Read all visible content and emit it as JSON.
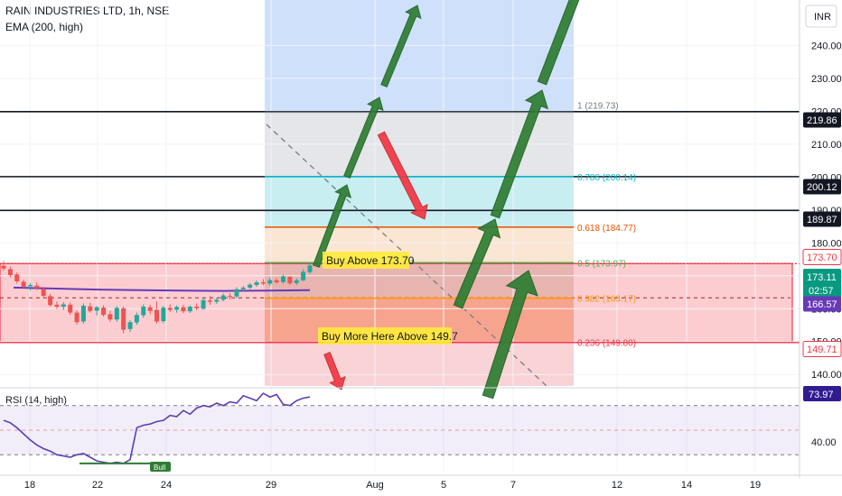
{
  "header": {
    "title": "RAIN INDUSTRIES LTD, 1h, NSE",
    "indicator": "EMA (200, high)",
    "currency": "INR"
  },
  "rsi_pane": {
    "label": "RSI (14, high)",
    "value": "73.97",
    "level_label": "40.00",
    "badge": "Bull"
  },
  "chart_data": {
    "type": "candlestick",
    "title": "RAIN INDUSTRIES LTD, 1h, NSE",
    "y_axis": {
      "range": [
        136.5,
        253.8
      ],
      "ticks": [
        140.0,
        150.0,
        160.0,
        170.0,
        180.0,
        190.0,
        200.0,
        210.0,
        220.0,
        230.0,
        240.0
      ]
    },
    "x_axis": {
      "tick_labels": [
        "18",
        "22",
        "24",
        "29",
        "Aug",
        "5",
        "7",
        "12",
        "14",
        "19"
      ]
    },
    "price_badges": [
      {
        "label": "219.86",
        "value": 219.86,
        "style": "dark"
      },
      {
        "label": "200.12",
        "value": 200.12,
        "style": "dark"
      },
      {
        "label": "189.87",
        "value": 189.87,
        "style": "dark"
      },
      {
        "label": "173.70",
        "value": 173.7,
        "style": "red-outline"
      },
      {
        "label": "173.11",
        "sub": "02:57",
        "value": 173.11,
        "style": "green"
      },
      {
        "label": "166.57",
        "value": 166.57,
        "style": "purple"
      },
      {
        "label": "149.71",
        "value": 149.71,
        "style": "red-outline"
      }
    ],
    "horizontal_lines": [
      {
        "value": 219.86,
        "color": "#131722"
      },
      {
        "value": 200.12,
        "color": "#131722"
      },
      {
        "value": 189.87,
        "color": "#131722"
      },
      {
        "value": 173.7,
        "color": "#f23645"
      },
      {
        "value": 149.71,
        "color": "#f23645"
      }
    ],
    "fibonacci": [
      {
        "label": "1 (219.73)",
        "value": 219.73,
        "color": "#787b86"
      },
      {
        "label": "0.786 (200.14)",
        "value": 200.14,
        "color": "#00bcd4"
      },
      {
        "label": "0.618 (184.77)",
        "value": 184.77,
        "color": "#e65100"
      },
      {
        "label": "0.5 (173.97)",
        "value": 173.97,
        "color": "#4caf50"
      },
      {
        "label": "0.382 (163.17)",
        "value": 163.17,
        "color": "#ff9800"
      },
      {
        "label": "0.236 (149.80)",
        "value": 149.8,
        "color": "#f23645"
      }
    ],
    "annotations": [
      {
        "text": "Buy Above 173.70"
      },
      {
        "text": "Buy More Here Above 149.7"
      }
    ],
    "ema_200": [
      166.4,
      166.1,
      165.8,
      165.6,
      165.5,
      165.4,
      165.5,
      165.6
    ],
    "candles": [
      {
        "o": 173.0,
        "h": 174.5,
        "l": 171.5,
        "c": 172.2
      },
      {
        "o": 172.0,
        "h": 172.8,
        "l": 169.5,
        "c": 170.2
      },
      {
        "o": 170.4,
        "h": 171.0,
        "l": 167.6,
        "c": 168.3
      },
      {
        "o": 168.2,
        "h": 168.8,
        "l": 166.0,
        "c": 166.6
      },
      {
        "o": 166.8,
        "h": 167.8,
        "l": 165.5,
        "c": 167.2
      },
      {
        "o": 167.0,
        "h": 168.0,
        "l": 165.6,
        "c": 166.2
      },
      {
        "o": 166.0,
        "h": 166.6,
        "l": 163.3,
        "c": 163.9
      },
      {
        "o": 163.8,
        "h": 164.5,
        "l": 160.6,
        "c": 161.1
      },
      {
        "o": 161.2,
        "h": 162.2,
        "l": 159.9,
        "c": 160.6
      },
      {
        "o": 160.6,
        "h": 162.0,
        "l": 159.6,
        "c": 161.3
      },
      {
        "o": 161.2,
        "h": 161.9,
        "l": 158.1,
        "c": 158.8
      },
      {
        "o": 158.8,
        "h": 159.5,
        "l": 155.1,
        "c": 155.9
      },
      {
        "o": 156.1,
        "h": 161.6,
        "l": 155.5,
        "c": 160.9
      },
      {
        "o": 160.7,
        "h": 161.8,
        "l": 158.8,
        "c": 159.3
      },
      {
        "o": 159.4,
        "h": 160.9,
        "l": 157.9,
        "c": 160.4
      },
      {
        "o": 160.3,
        "h": 161.0,
        "l": 157.6,
        "c": 158.1
      },
      {
        "o": 158.3,
        "h": 159.3,
        "l": 156.0,
        "c": 156.7
      },
      {
        "o": 156.7,
        "h": 160.8,
        "l": 156.0,
        "c": 160.2
      },
      {
        "o": 160.1,
        "h": 160.6,
        "l": 152.5,
        "c": 153.6
      },
      {
        "o": 153.8,
        "h": 156.5,
        "l": 152.9,
        "c": 155.9
      },
      {
        "o": 155.8,
        "h": 158.8,
        "l": 155.1,
        "c": 158.1
      },
      {
        "o": 158.0,
        "h": 161.3,
        "l": 157.2,
        "c": 160.6
      },
      {
        "o": 160.4,
        "h": 161.2,
        "l": 158.3,
        "c": 159.3
      },
      {
        "o": 159.6,
        "h": 162.2,
        "l": 155.4,
        "c": 156.1
      },
      {
        "o": 156.2,
        "h": 160.8,
        "l": 155.6,
        "c": 160.3
      },
      {
        "o": 160.2,
        "h": 161.3,
        "l": 159.0,
        "c": 159.6
      },
      {
        "o": 159.7,
        "h": 161.0,
        "l": 158.8,
        "c": 160.5
      },
      {
        "o": 160.4,
        "h": 161.2,
        "l": 158.6,
        "c": 159.2
      },
      {
        "o": 159.2,
        "h": 161.0,
        "l": 158.7,
        "c": 160.6
      },
      {
        "o": 160.6,
        "h": 161.6,
        "l": 159.5,
        "c": 160.1
      },
      {
        "o": 160.0,
        "h": 163.5,
        "l": 159.6,
        "c": 162.6
      },
      {
        "o": 162.5,
        "h": 163.8,
        "l": 161.2,
        "c": 162.1
      },
      {
        "o": 162.1,
        "h": 163.3,
        "l": 161.5,
        "c": 162.7
      },
      {
        "o": 162.7,
        "h": 164.6,
        "l": 162.2,
        "c": 164.0
      },
      {
        "o": 163.9,
        "h": 164.8,
        "l": 162.8,
        "c": 163.6
      },
      {
        "o": 163.7,
        "h": 166.5,
        "l": 163.2,
        "c": 165.9
      },
      {
        "o": 165.9,
        "h": 166.9,
        "l": 165.1,
        "c": 166.4
      },
      {
        "o": 166.4,
        "h": 167.8,
        "l": 165.9,
        "c": 167.3
      },
      {
        "o": 167.2,
        "h": 168.6,
        "l": 166.6,
        "c": 168.0
      },
      {
        "o": 168.0,
        "h": 169.0,
        "l": 167.1,
        "c": 167.6
      },
      {
        "o": 167.6,
        "h": 169.5,
        "l": 167.0,
        "c": 168.7
      },
      {
        "o": 168.6,
        "h": 169.3,
        "l": 167.6,
        "c": 168.0
      },
      {
        "o": 168.1,
        "h": 170.3,
        "l": 167.6,
        "c": 169.8
      },
      {
        "o": 169.7,
        "h": 169.8,
        "l": 167.2,
        "c": 167.7
      },
      {
        "o": 167.8,
        "h": 169.2,
        "l": 167.2,
        "c": 168.6
      },
      {
        "o": 168.6,
        "h": 172.0,
        "l": 168.4,
        "c": 171.2
      },
      {
        "o": 171.1,
        "h": 174.2,
        "l": 170.6,
        "c": 173.11
      }
    ],
    "rsi": [
      58,
      56,
      52,
      47,
      42,
      38,
      35,
      33,
      30,
      29,
      28,
      30,
      31,
      28,
      25,
      24,
      23,
      24,
      23,
      26,
      52,
      54,
      55,
      57,
      58,
      62,
      61,
      66,
      63,
      68,
      70,
      69,
      72,
      70,
      73,
      72,
      78,
      76,
      74,
      80,
      77,
      79,
      71,
      70,
      74,
      76,
      77
    ]
  }
}
